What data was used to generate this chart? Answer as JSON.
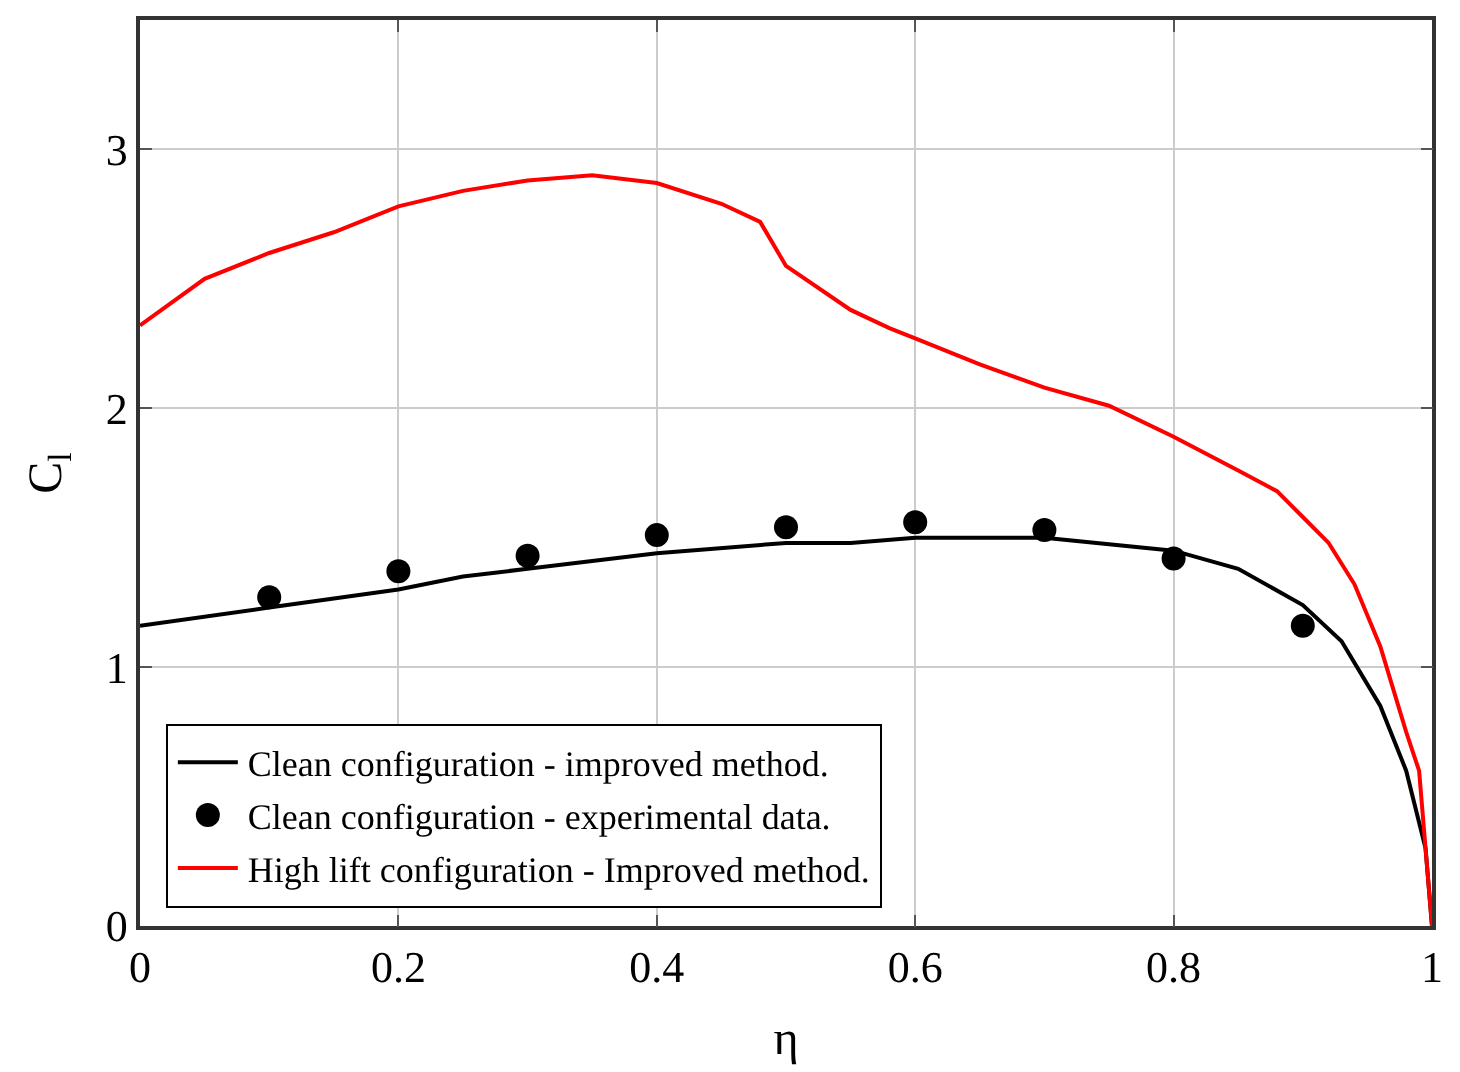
{
  "chart_data": {
    "type": "line",
    "xlabel": "η",
    "ylabel": "C$_{l}$",
    "xlim": [
      0,
      1
    ],
    "ylim": [
      0,
      3.5
    ],
    "xticks": [
      0,
      0.2,
      0.4,
      0.6,
      0.8,
      1
    ],
    "yticks": [
      0,
      1,
      2,
      3
    ],
    "grid": true,
    "legend": "bottom",
    "series": [
      {
        "name": "Clean configuration - improved method.",
        "color": "#000000",
        "marker": "none",
        "x": [
          0,
          0.1,
          0.2,
          0.25,
          0.3,
          0.4,
          0.5,
          0.55,
          0.6,
          0.65,
          0.7,
          0.8,
          0.85,
          0.9,
          0.93,
          0.96,
          0.98,
          0.995,
          1.0
        ],
        "values": [
          1.16,
          1.23,
          1.3,
          1.35,
          1.38,
          1.44,
          1.48,
          1.48,
          1.5,
          1.5,
          1.5,
          1.45,
          1.38,
          1.24,
          1.1,
          0.85,
          0.6,
          0.3,
          0.0
        ]
      },
      {
        "name": "Clean configuration - experimental data.",
        "type": "scatter",
        "color": "#000000",
        "marker": "circle",
        "x": [
          0.1,
          0.2,
          0.3,
          0.4,
          0.5,
          0.6,
          0.7,
          0.8,
          0.9
        ],
        "values": [
          1.27,
          1.37,
          1.43,
          1.51,
          1.54,
          1.56,
          1.53,
          1.42,
          1.16
        ]
      },
      {
        "name": "High lift configuration - Improved method.",
        "color": "#ff0000",
        "marker": "none",
        "x": [
          0,
          0.05,
          0.1,
          0.15,
          0.2,
          0.25,
          0.3,
          0.35,
          0.4,
          0.45,
          0.48,
          0.5,
          0.55,
          0.58,
          0.6,
          0.65,
          0.7,
          0.75,
          0.8,
          0.85,
          0.88,
          0.9,
          0.92,
          0.94,
          0.96,
          0.98,
          0.99,
          1.0
        ],
        "values": [
          2.32,
          2.5,
          2.6,
          2.68,
          2.78,
          2.84,
          2.88,
          2.9,
          2.87,
          2.79,
          2.72,
          2.55,
          2.38,
          2.31,
          2.27,
          2.17,
          2.08,
          2.01,
          1.89,
          1.76,
          1.68,
          1.58,
          1.48,
          1.32,
          1.08,
          0.75,
          0.6,
          0.0
        ]
      }
    ]
  }
}
